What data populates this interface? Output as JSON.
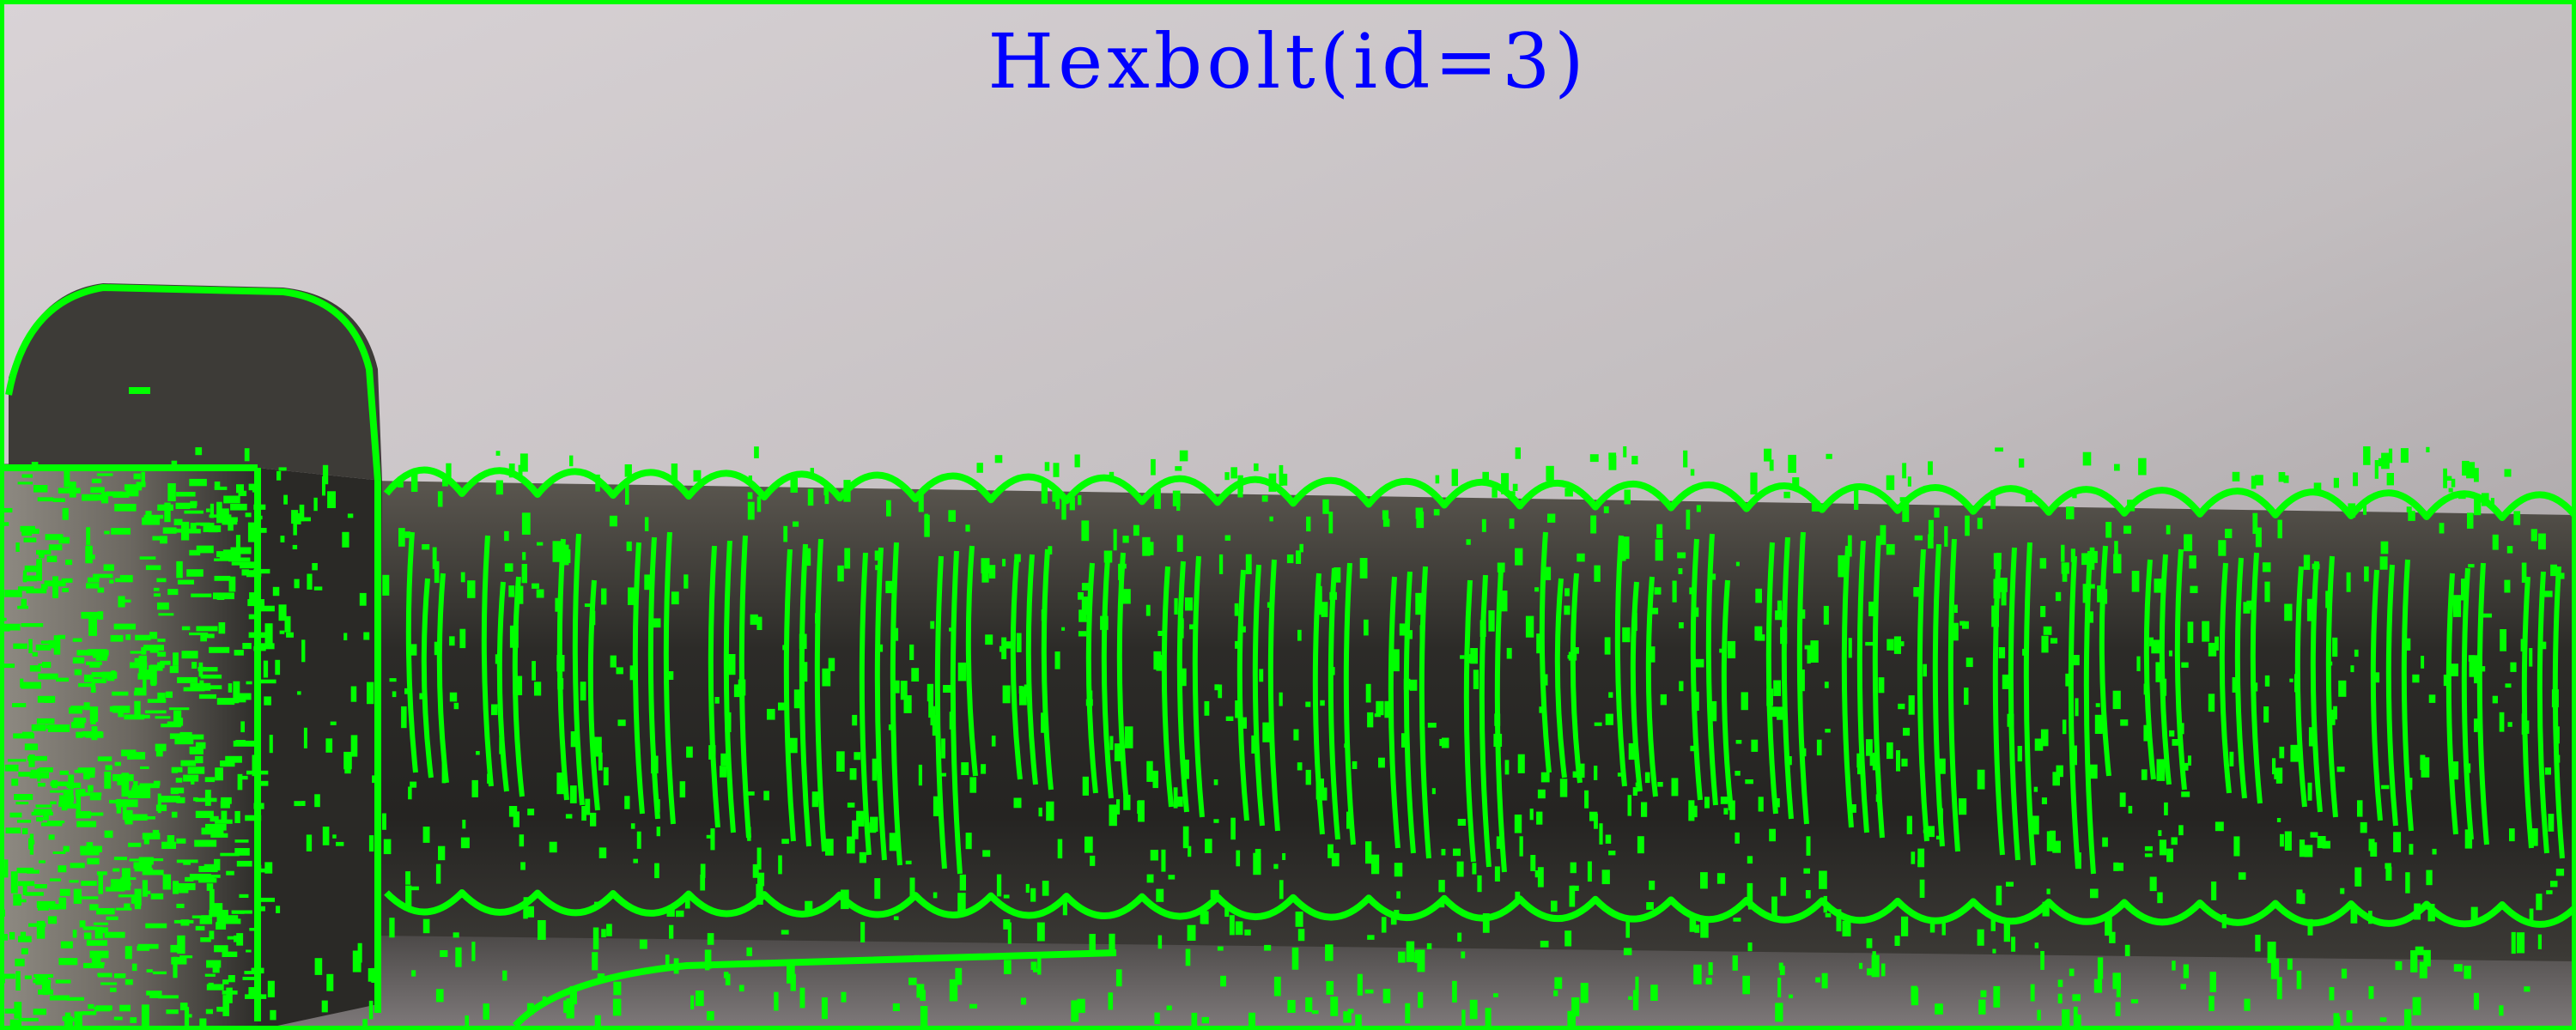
{
  "image": {
    "title": "Hexbolt(id=3)",
    "subject_icon": "hex-bolt-icon",
    "colors": {
      "title": "#0000ff",
      "edge_overlay": "#00ff00",
      "frame": "#00ff00",
      "background_light": "#d8d3d6",
      "background_dark": "#8a8588",
      "metal_dark": "#2b2a27",
      "metal_mid": "#55524b"
    }
  }
}
